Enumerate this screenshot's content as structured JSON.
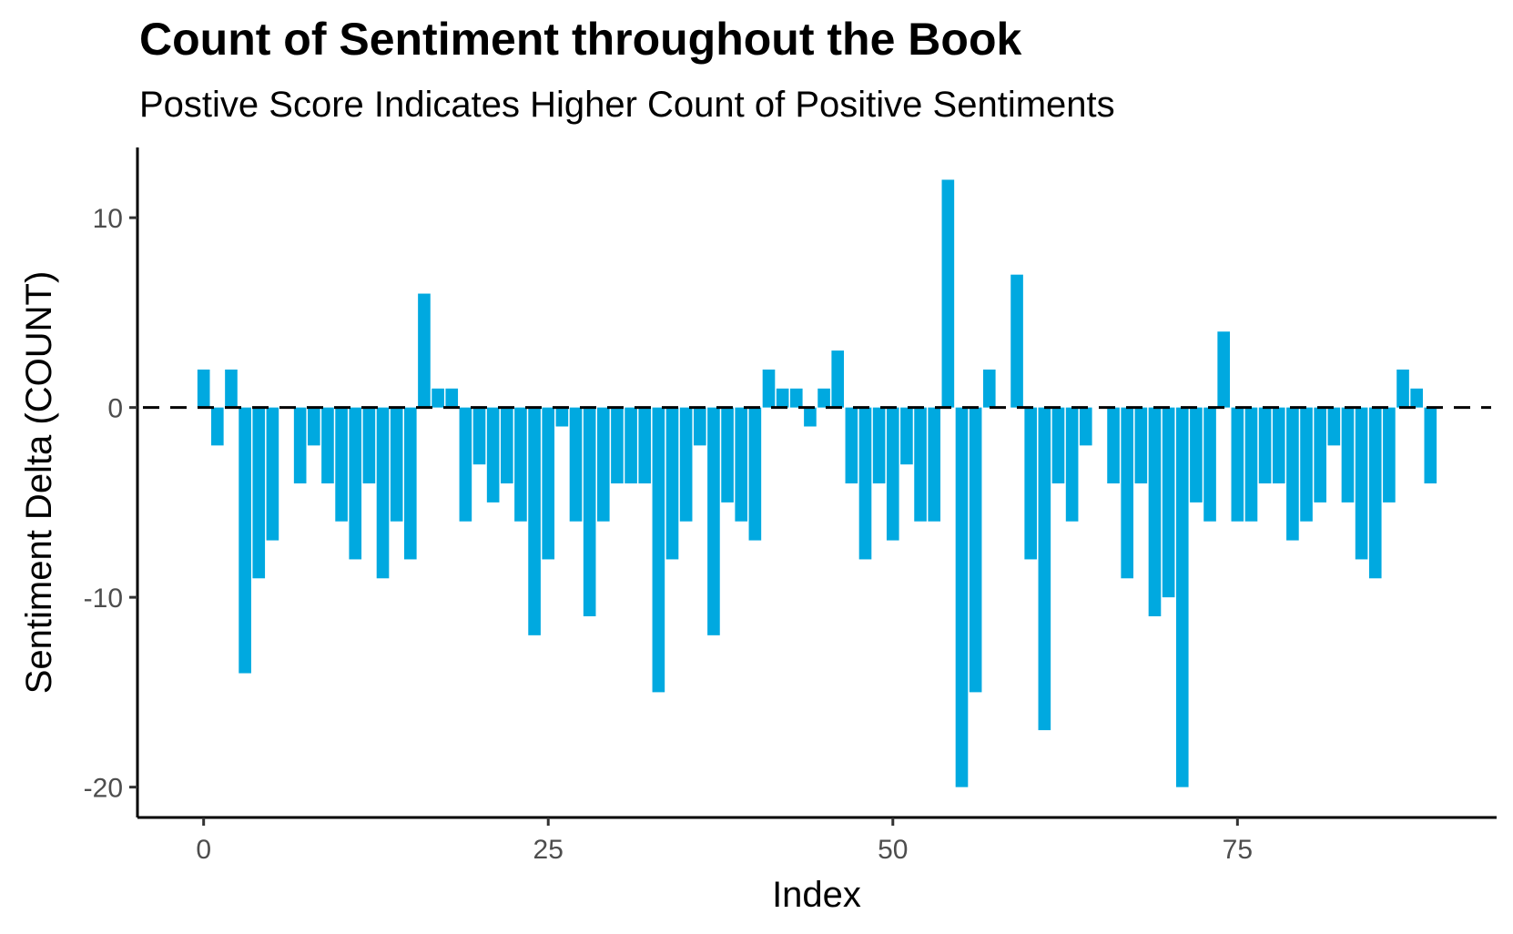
{
  "chart_data": {
    "type": "bar",
    "title": "Count of Sentiment throughout the Book",
    "subtitle": "Postive Score Indicates Higher Count of Positive Sentiments",
    "xlabel": "Index",
    "ylabel": "Sentiment Delta (COUNT)",
    "xlim": [
      -4.8,
      93.8
    ],
    "ylim": [
      -21.6,
      13.7
    ],
    "x_ticks": [
      0,
      25,
      50,
      75
    ],
    "x_tick_labels": [
      "0",
      "25",
      "50",
      "75"
    ],
    "y_ticks": [
      -20,
      -10,
      0,
      10
    ],
    "y_tick_labels": [
      "-20",
      "-10",
      "0",
      "10"
    ],
    "reference_line": {
      "y": 0,
      "style": "dashed",
      "color": "#000000"
    },
    "bar_color": "#00A9E0",
    "grid": false,
    "legend": "none",
    "x": [
      0,
      1,
      2,
      3,
      4,
      5,
      7,
      8,
      9,
      10,
      11,
      12,
      13,
      14,
      15,
      16,
      17,
      18,
      19,
      20,
      21,
      22,
      23,
      24,
      25,
      26,
      27,
      28,
      29,
      30,
      31,
      32,
      33,
      34,
      35,
      36,
      37,
      38,
      39,
      40,
      41,
      42,
      43,
      44,
      45,
      46,
      47,
      48,
      49,
      50,
      51,
      52,
      53,
      54,
      55,
      56,
      57,
      59,
      60,
      61,
      62,
      63,
      64,
      66,
      67,
      68,
      69,
      70,
      71,
      72,
      73,
      74,
      75,
      76,
      77,
      78,
      79,
      80,
      81,
      82,
      83,
      84,
      85,
      86,
      87,
      88,
      89
    ],
    "values": [
      2,
      -2,
      2,
      -14,
      -9,
      -7,
      -4,
      -2,
      -4,
      -6,
      -8,
      -4,
      -9,
      -6,
      -8,
      6,
      1,
      1,
      -6,
      -3,
      -5,
      -4,
      -6,
      -12,
      -8,
      -1,
      -6,
      -11,
      -6,
      -4,
      -4,
      -4,
      -15,
      -8,
      -6,
      -2,
      -12,
      -5,
      -6,
      -7,
      2,
      1,
      1,
      -1,
      1,
      3,
      -4,
      -8,
      -4,
      -7,
      -3,
      -6,
      -6,
      12,
      -20,
      -15,
      2,
      7,
      -8,
      -17,
      -4,
      -6,
      -2,
      -4,
      -9,
      -4,
      -11,
      -10,
      -20,
      -5,
      -6,
      4,
      -6,
      -6,
      -4,
      -4,
      -7,
      -6,
      -5,
      -2,
      -5,
      -8,
      -9,
      -5,
      2,
      1,
      -4
    ]
  }
}
